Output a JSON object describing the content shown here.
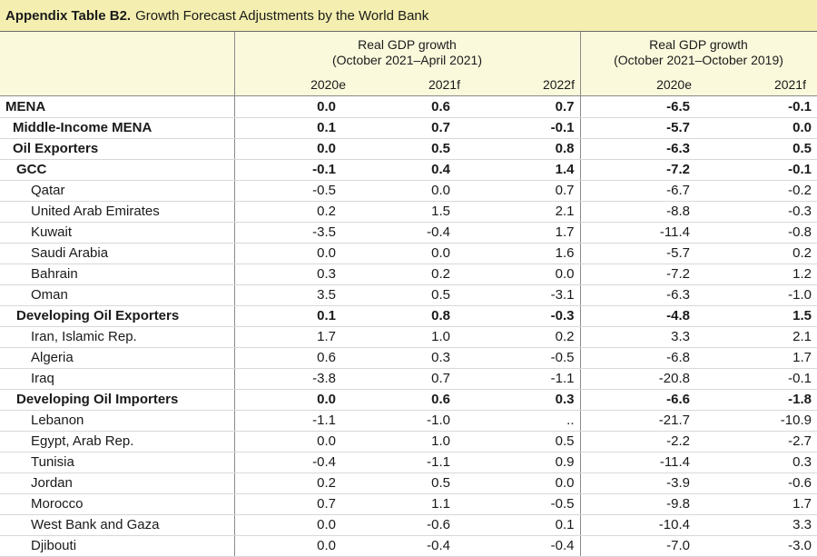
{
  "title": {
    "label": "Appendix Table B2.",
    "text": "Growth Forecast Adjustments by the World Bank"
  },
  "column_groups": [
    {
      "line1": "Real GDP growth",
      "line2": "(October 2021–April 2021)"
    },
    {
      "line1": "Real GDP growth",
      "line2": "(October 2021–October 2019)"
    }
  ],
  "columns": [
    "2020e",
    "2021f",
    "2022f",
    "2020e",
    "2021f"
  ],
  "rows": [
    {
      "name": "MENA",
      "level": 0,
      "values": [
        "0.0",
        "0.6",
        "0.7",
        "-6.5",
        "-0.1"
      ]
    },
    {
      "name": "Middle-Income MENA",
      "level": 1,
      "values": [
        "0.1",
        "0.7",
        "-0.1",
        "-5.7",
        "0.0"
      ]
    },
    {
      "name": "Oil Exporters",
      "level": 1,
      "values": [
        "0.0",
        "0.5",
        "0.8",
        "-6.3",
        "0.5"
      ]
    },
    {
      "name": "GCC",
      "level": 2,
      "values": [
        "-0.1",
        "0.4",
        "1.4",
        "-7.2",
        "-0.1"
      ]
    },
    {
      "name": "Qatar",
      "level": 3,
      "values": [
        "-0.5",
        "0.0",
        "0.7",
        "-6.7",
        "-0.2"
      ]
    },
    {
      "name": "United Arab Emirates",
      "level": 3,
      "values": [
        "0.2",
        "1.5",
        "2.1",
        "-8.8",
        "-0.3"
      ]
    },
    {
      "name": "Kuwait",
      "level": 3,
      "values": [
        "-3.5",
        "-0.4",
        "1.7",
        "-11.4",
        "-0.8"
      ]
    },
    {
      "name": "Saudi Arabia",
      "level": 3,
      "values": [
        "0.0",
        "0.0",
        "1.6",
        "-5.7",
        "0.2"
      ]
    },
    {
      "name": "Bahrain",
      "level": 3,
      "values": [
        "0.3",
        "0.2",
        "0.0",
        "-7.2",
        "1.2"
      ]
    },
    {
      "name": "Oman",
      "level": 3,
      "values": [
        "3.5",
        "0.5",
        "-3.1",
        "-6.3",
        "-1.0"
      ]
    },
    {
      "name": "Developing Oil Exporters",
      "level": 2,
      "values": [
        "0.1",
        "0.8",
        "-0.3",
        "-4.8",
        "1.5"
      ]
    },
    {
      "name": "Iran, Islamic Rep.",
      "level": 3,
      "values": [
        "1.7",
        "1.0",
        "0.2",
        "3.3",
        "2.1"
      ]
    },
    {
      "name": "Algeria",
      "level": 3,
      "values": [
        "0.6",
        "0.3",
        "-0.5",
        "-6.8",
        "1.7"
      ]
    },
    {
      "name": "Iraq",
      "level": 3,
      "values": [
        "-3.8",
        "0.7",
        "-1.1",
        "-20.8",
        "-0.1"
      ]
    },
    {
      "name": "Developing Oil Importers",
      "level": 2,
      "values": [
        "0.0",
        "0.6",
        "0.3",
        "-6.6",
        "-1.8"
      ]
    },
    {
      "name": "Lebanon",
      "level": 3,
      "values": [
        "-1.1",
        "-1.0",
        "..",
        "-21.7",
        "-10.9"
      ]
    },
    {
      "name": "Egypt, Arab Rep.",
      "level": 3,
      "values": [
        "0.0",
        "1.0",
        "0.5",
        "-2.2",
        "-2.7"
      ]
    },
    {
      "name": "Tunisia",
      "level": 3,
      "values": [
        "-0.4",
        "-1.1",
        "0.9",
        "-11.4",
        "0.3"
      ]
    },
    {
      "name": "Jordan",
      "level": 3,
      "values": [
        "0.2",
        "0.5",
        "0.0",
        "-3.9",
        "-0.6"
      ]
    },
    {
      "name": "Morocco",
      "level": 3,
      "values": [
        "0.7",
        "1.1",
        "-0.5",
        "-9.8",
        "1.7"
      ]
    },
    {
      "name": "West Bank and Gaza",
      "level": 3,
      "values": [
        "0.0",
        "-0.6",
        "0.1",
        "-10.4",
        "3.3"
      ]
    },
    {
      "name": "Djibouti",
      "level": 3,
      "values": [
        "0.0",
        "-0.4",
        "-0.4",
        "-7.0",
        "-3.0"
      ]
    }
  ]
}
